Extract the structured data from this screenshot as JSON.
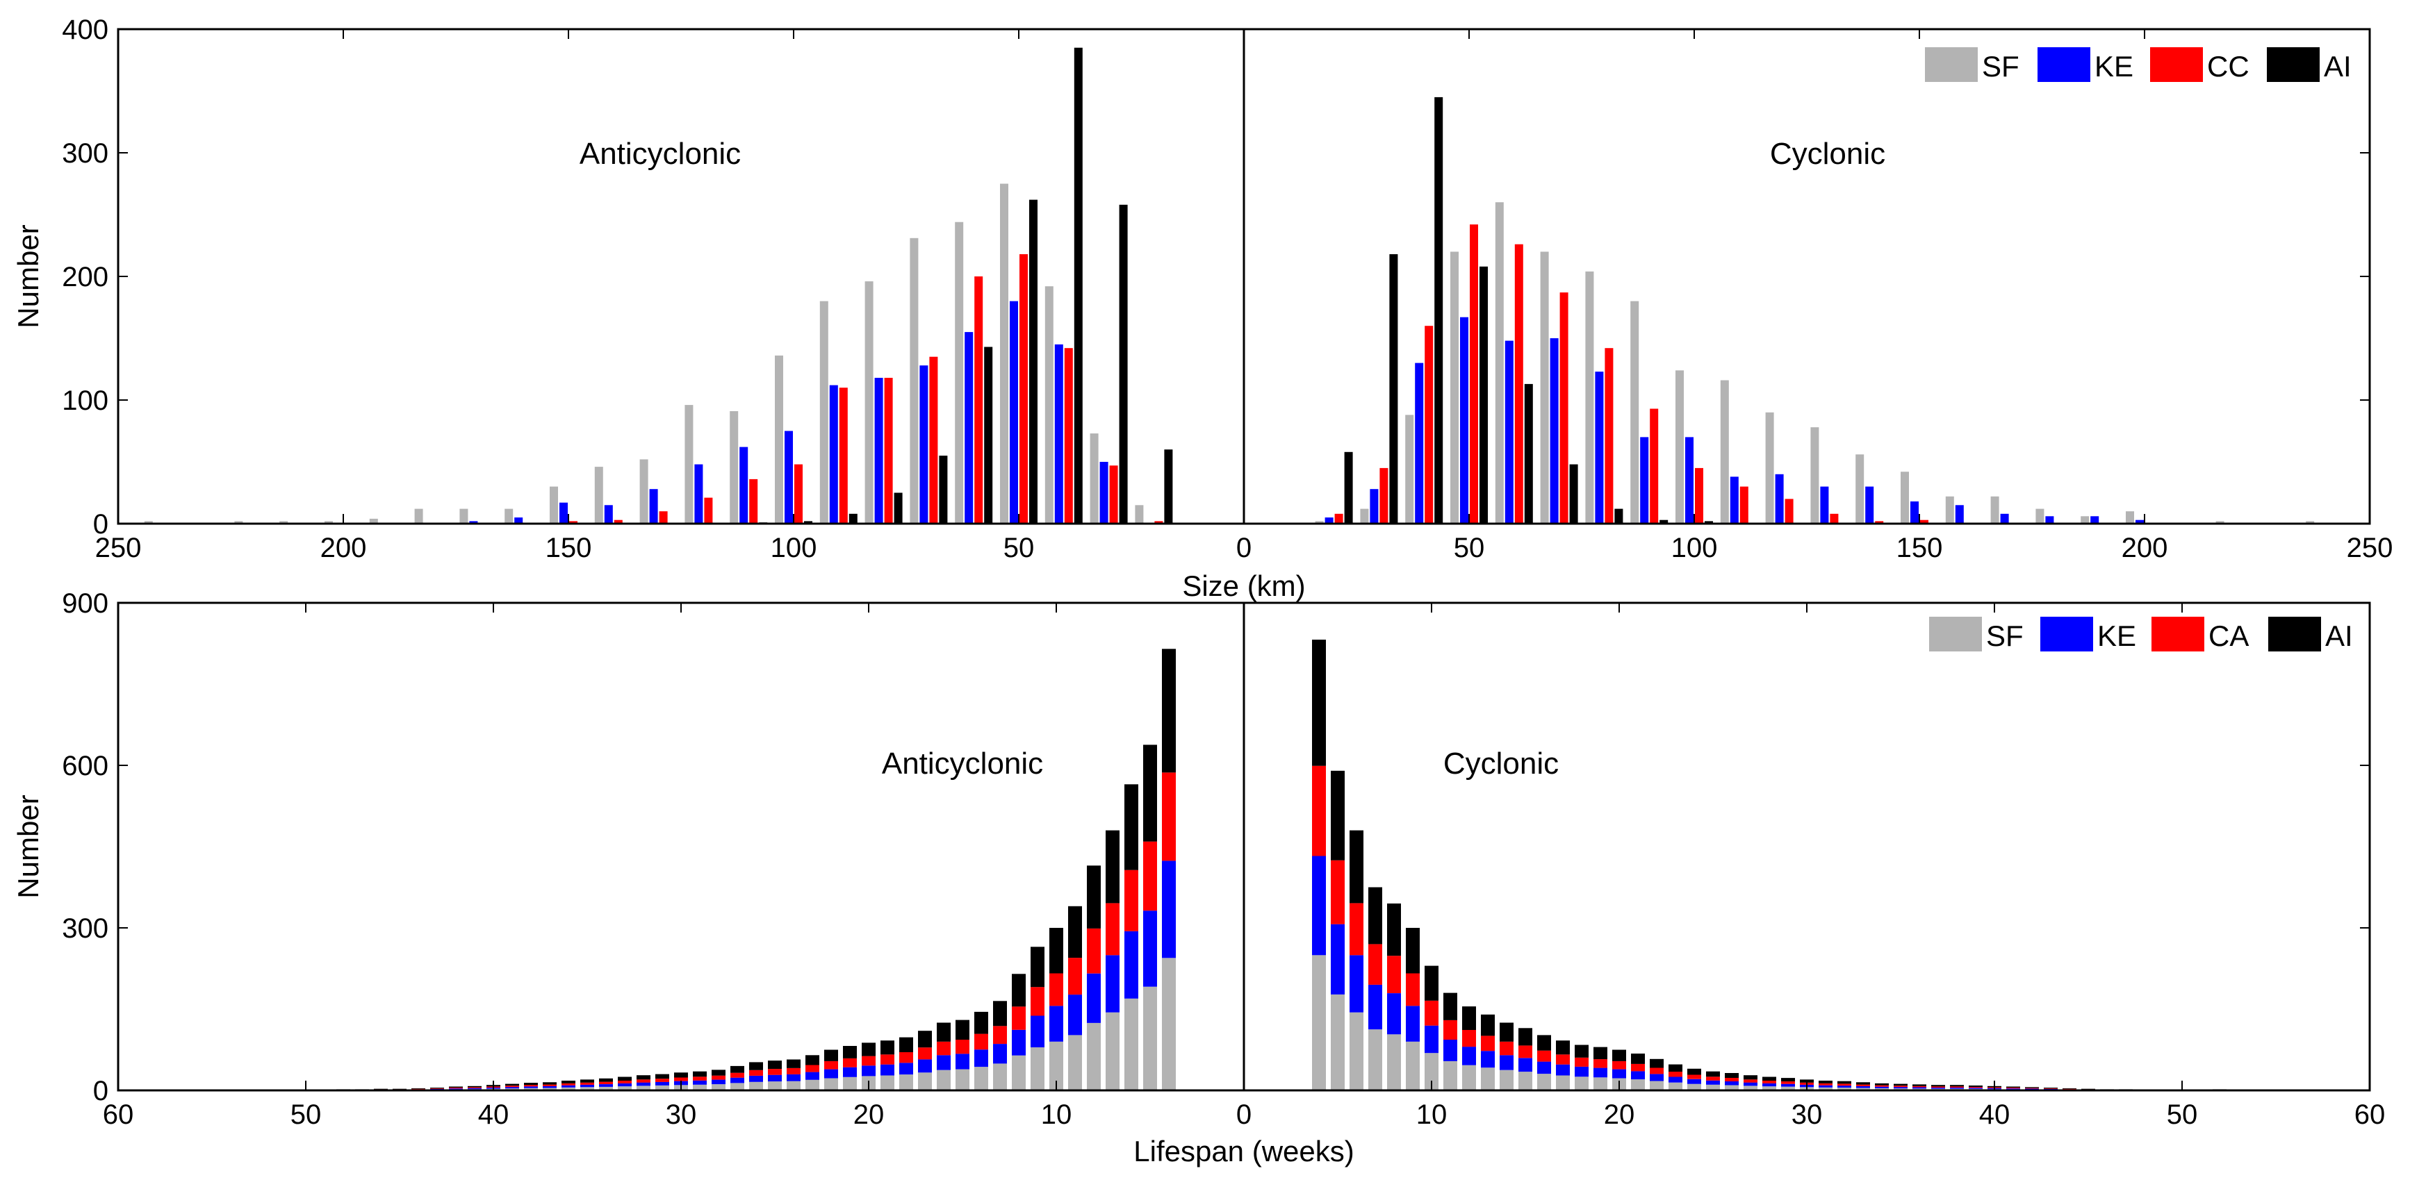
{
  "chart_data": [
    {
      "type": "bar",
      "ylabel": "Number",
      "xlabel": "Size (km)",
      "ylim": [
        0,
        400
      ],
      "yticks": [
        "0",
        "100",
        "200",
        "300",
        "400"
      ],
      "xticks": [
        "250",
        "200",
        "150",
        "100",
        "50",
        "0",
        "50",
        "100",
        "150",
        "200",
        "250"
      ],
      "annotations": [
        "Anticyclonic",
        "Cyclonic"
      ],
      "colors": {
        "SF": "#b3b3b3",
        "KE": "#0000ff",
        "CC": "#ff0000",
        "AI": "#000000"
      },
      "legend": [
        "SF",
        "KE",
        "CC",
        "AI"
      ],
      "bin_centers_km": [
        20,
        30,
        40,
        50,
        60,
        70,
        80,
        90,
        100,
        110,
        120,
        130,
        140,
        150,
        160,
        170,
        180,
        190,
        200,
        210,
        220,
        230,
        240
      ],
      "anticyclonic": [
        {
          "name": "SF",
          "values": [
            15,
            73,
            192,
            275,
            244,
            231,
            196,
            180,
            136,
            91,
            96,
            52,
            46,
            30,
            12,
            12,
            12,
            4,
            2,
            2,
            2,
            0,
            2
          ]
        },
        {
          "name": "KE",
          "values": [
            0,
            50,
            145,
            180,
            155,
            128,
            118,
            112,
            75,
            62,
            48,
            28,
            15,
            17,
            5,
            2,
            0,
            0,
            0,
            0,
            0,
            0,
            0
          ]
        },
        {
          "name": "CC",
          "values": [
            2,
            47,
            142,
            218,
            200,
            135,
            118,
            110,
            48,
            36,
            21,
            10,
            3,
            2,
            0,
            0,
            0,
            0,
            0,
            0,
            0,
            0,
            0
          ]
        },
        {
          "name": "AI",
          "values": [
            60,
            258,
            385,
            262,
            143,
            55,
            25,
            8,
            2,
            1,
            0,
            0,
            0,
            0,
            0,
            0,
            0,
            0,
            0,
            0,
            0,
            0,
            0
          ]
        }
      ],
      "cyclonic": [
        {
          "name": "SF",
          "values": [
            2,
            12,
            88,
            220,
            260,
            220,
            204,
            180,
            124,
            116,
            90,
            78,
            56,
            42,
            22,
            22,
            12,
            6,
            10,
            0,
            2,
            0,
            2
          ]
        },
        {
          "name": "KE",
          "values": [
            5,
            28,
            130,
            167,
            148,
            150,
            123,
            70,
            70,
            38,
            40,
            30,
            30,
            18,
            15,
            8,
            6,
            6,
            3,
            0,
            0,
            0,
            0
          ]
        },
        {
          "name": "CC",
          "values": [
            8,
            45,
            160,
            242,
            226,
            187,
            142,
            93,
            45,
            30,
            20,
            8,
            2,
            3,
            0,
            0,
            0,
            0,
            0,
            0,
            0,
            0,
            0
          ]
        },
        {
          "name": "AI",
          "values": [
            58,
            218,
            345,
            208,
            113,
            48,
            12,
            3,
            2,
            0,
            0,
            0,
            0,
            0,
            0,
            0,
            0,
            0,
            0,
            0,
            0,
            0,
            0
          ]
        }
      ]
    },
    {
      "type": "bar",
      "stacked": true,
      "ylabel": "Number",
      "xlabel": "Lifespan (weeks)",
      "ylim": [
        0,
        900
      ],
      "yticks": [
        "0",
        "300",
        "600",
        "900"
      ],
      "xticks": [
        "60",
        "50",
        "40",
        "30",
        "20",
        "10",
        "0",
        "10",
        "20",
        "30",
        "40",
        "50",
        "60"
      ],
      "annotations": [
        "Anticyclonic",
        "Cyclonic"
      ],
      "colors": {
        "SF": "#b3b3b3",
        "KE": "#0000ff",
        "CA": "#ff0000",
        "AI": "#000000"
      },
      "legend": [
        "SF",
        "KE",
        "CA",
        "AI"
      ],
      "weeks": [
        4,
        5,
        6,
        7,
        8,
        9,
        10,
        11,
        12,
        13,
        14,
        15,
        16,
        17,
        18,
        19,
        20,
        21,
        22,
        23,
        24,
        25,
        26,
        27,
        28,
        29,
        30,
        31,
        32,
        33,
        34,
        35,
        36,
        37,
        38,
        39,
        40,
        41,
        42,
        43,
        44,
        45,
        46,
        47,
        48,
        49,
        50,
        51,
        52
      ],
      "anticyclonic_totals": [
        815,
        638,
        565,
        480,
        415,
        340,
        300,
        265,
        215,
        165,
        145,
        130,
        125,
        110,
        98,
        92,
        88,
        82,
        75,
        65,
        57,
        55,
        52,
        45,
        38,
        35,
        33,
        30,
        28,
        25,
        22,
        20,
        18,
        15,
        14,
        12,
        10,
        8,
        7,
        5,
        4,
        3,
        3,
        2,
        2,
        1,
        1,
        1,
        1
      ],
      "cyclonic_totals": [
        832,
        590,
        480,
        375,
        345,
        300,
        230,
        180,
        155,
        140,
        125,
        115,
        102,
        92,
        84,
        80,
        75,
        68,
        58,
        48,
        40,
        35,
        32,
        28,
        25,
        23,
        20,
        18,
        17,
        15,
        13,
        12,
        11,
        10,
        10,
        9,
        8,
        7,
        6,
        5,
        4,
        3,
        2,
        2,
        1,
        1,
        1,
        1,
        2
      ],
      "stack_fractions": {
        "SF": 0.3,
        "KE": 0.22,
        "CA": 0.2,
        "AI": 0.28
      }
    }
  ]
}
